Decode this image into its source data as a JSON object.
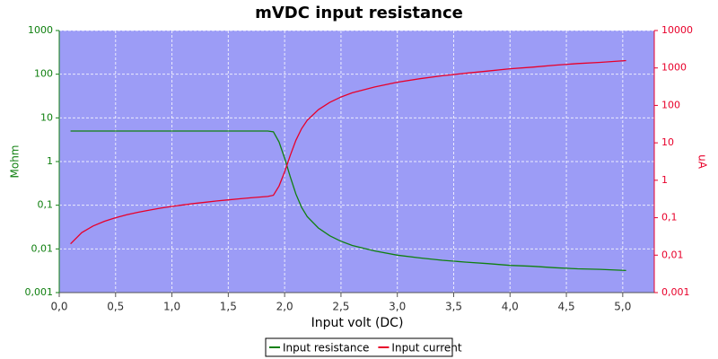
{
  "chart_data": {
    "type": "line",
    "title": "mVDC input resistance",
    "x_label": "Input volt (DC)",
    "y_label": "Mohm",
    "y2_label": "uA",
    "x": [
      0.1,
      0.2,
      0.3,
      0.4,
      0.5,
      0.6,
      0.7,
      0.8,
      0.9,
      1.0,
      1.1,
      1.2,
      1.3,
      1.4,
      1.5,
      1.6,
      1.7,
      1.8,
      1.85,
      1.9,
      1.95,
      2.0,
      2.05,
      2.1,
      2.15,
      2.2,
      2.3,
      2.4,
      2.5,
      2.6,
      2.8,
      3.0,
      3.2,
      3.4,
      3.6,
      3.8,
      4.0,
      4.2,
      4.4,
      4.6,
      4.8,
      5.03
    ],
    "series": [
      {
        "name": "Input resistance",
        "color": "#108010",
        "axis": "y",
        "values": [
          5,
          5,
          5,
          5,
          5,
          5,
          5,
          5,
          5,
          5,
          5,
          5,
          5,
          5,
          5,
          5,
          5,
          5,
          5,
          4.8,
          2.8,
          1.2,
          0.45,
          0.18,
          0.09,
          0.055,
          0.03,
          0.02,
          0.015,
          0.012,
          0.009,
          0.0072,
          0.0062,
          0.0055,
          0.005,
          0.0046,
          0.0042,
          0.004,
          0.0037,
          0.0035,
          0.0034,
          0.0032
        ]
      },
      {
        "name": "Input current",
        "color": "#e8002a",
        "axis": "y2",
        "values": [
          0.02,
          0.04,
          0.06,
          0.08,
          0.1,
          0.12,
          0.14,
          0.16,
          0.18,
          0.2,
          0.22,
          0.24,
          0.26,
          0.28,
          0.3,
          0.32,
          0.34,
          0.36,
          0.37,
          0.396,
          0.7,
          1.67,
          4.6,
          11.7,
          23.9,
          40,
          77,
          120,
          167,
          217,
          311,
          417,
          516,
          618,
          720,
          826,
          952,
          1050,
          1189,
          1314,
          1412,
          1572
        ]
      }
    ],
    "xlim": [
      0,
      5.28
    ],
    "xticks": [
      {
        "value": 0,
        "label": "0,0"
      },
      {
        "value": 0.5,
        "label": "0,5"
      },
      {
        "value": 1,
        "label": "1,0"
      },
      {
        "value": 1.5,
        "label": "1,5"
      },
      {
        "value": 2,
        "label": "2,0"
      },
      {
        "value": 2.5,
        "label": "2,5"
      },
      {
        "value": 3,
        "label": "3,0"
      },
      {
        "value": 3.5,
        "label": "3,5"
      },
      {
        "value": 4,
        "label": "4,0"
      },
      {
        "value": 4.5,
        "label": "4,5"
      },
      {
        "value": 5,
        "label": "5,0"
      }
    ],
    "ylim": [
      0.001,
      1000
    ],
    "yticks": [
      {
        "value": 0.001,
        "label": "0,001"
      },
      {
        "value": 0.01,
        "label": "0,01"
      },
      {
        "value": 0.1,
        "label": "0,1"
      },
      1,
      10,
      100,
      1000
    ],
    "y2lim": [
      0.001,
      10000
    ],
    "y2ticks": [
      {
        "value": 0.001,
        "label": "0,001"
      },
      {
        "value": 0.01,
        "label": "0,01"
      },
      {
        "value": 0.1,
        "label": "0,1"
      },
      1,
      10,
      100,
      1000,
      10000
    ],
    "log_y": true,
    "log_y2": true,
    "grid": true,
    "legend": "bottom"
  }
}
